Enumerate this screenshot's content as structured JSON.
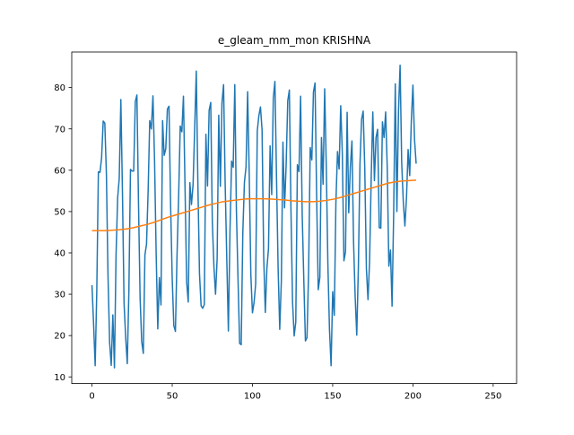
{
  "chart_data": {
    "type": "line",
    "title": "e_gleam_mm_mon KRISHNA",
    "xlabel": "",
    "ylabel": "",
    "xlim": [
      -12.6,
      264.6
    ],
    "ylim": [
      8.4,
      88.6
    ],
    "grid": false,
    "xticks": [
      0,
      50,
      100,
      150,
      200,
      250
    ],
    "yticks": [
      10,
      20,
      30,
      40,
      50,
      60,
      70,
      80
    ],
    "colors": {
      "raw": "#1f77b4",
      "trend": "#ff7f0e"
    },
    "series": [
      {
        "x_start": 0,
        "values": [
          32.2,
          22.9,
          12.7,
          30.8,
          59.6,
          59.5,
          63.0,
          71.9,
          71.4,
          58.9,
          34.3,
          18.3,
          12.8,
          25.0,
          12.2,
          39.5,
          53.3,
          58.1,
          77.1,
          54.6,
          27.8,
          19.6,
          13.2,
          30.7,
          60.2,
          59.8,
          59.8,
          76.6,
          78.2,
          51.9,
          29.0,
          18.5,
          15.7,
          39.5,
          42.1,
          55.0,
          72.0,
          70.0,
          78.0,
          62.4,
          39.8,
          21.6,
          34.0,
          27.4,
          72.0,
          63.6,
          65.2,
          74.8,
          75.5,
          51.7,
          33.8,
          22.4,
          21.0,
          39.4,
          53.6,
          70.7,
          69.3,
          77.9,
          55.6,
          32.9,
          28.1,
          57.0,
          51.7,
          56.5,
          70.0,
          84.0,
          56.6,
          35.0,
          27.2,
          26.6,
          27.5,
          68.7,
          56.2,
          74.5,
          76.4,
          47.5,
          36.7,
          30.0,
          38.6,
          73.3,
          56.1,
          76.3,
          80.7,
          56.7,
          38.6,
          21.1,
          45.3,
          62.2,
          60.7,
          80.7,
          50.3,
          33.8,
          18.1,
          17.8,
          44.9,
          57.1,
          60.8,
          79.0,
          59.0,
          34.7,
          25.5,
          28.0,
          32.5,
          69.5,
          73.2,
          75.3,
          69.7,
          39.3,
          25.6,
          36.3,
          41.0,
          65.9,
          54.1,
          77.5,
          81.5,
          58.2,
          36.2,
          21.5,
          33.2,
          66.8,
          50.9,
          61.3,
          76.8,
          79.4,
          50.4,
          28.0,
          19.9,
          23.3,
          61.3,
          59.7,
          77.9,
          49.3,
          33.5,
          18.7,
          19.5,
          35.7,
          65.5,
          62.5,
          78.9,
          81.1,
          53.6,
          31.1,
          34.1,
          67.9,
          56.6,
          79.7,
          61.1,
          37.3,
          21.5,
          12.7,
          30.6,
          24.9,
          52.1,
          64.5,
          60.3,
          75.6,
          64.1,
          38.1,
          40.3,
          74.0,
          49.7,
          60.8,
          67.1,
          42.8,
          29.5,
          20.1,
          36.4,
          61.5,
          72.3,
          74.3,
          60.3,
          36.2,
          28.7,
          38.1,
          58.1,
          74.1,
          57.5,
          67.9,
          69.9,
          46.1,
          46.0,
          71.7,
          67.9,
          74.1,
          60.5,
          36.8,
          40.7,
          27.1,
          49.7,
          80.9,
          50.0,
          74.2,
          85.4,
          61.8,
          52.4,
          46.5,
          53.4,
          65.0,
          58.7,
          71.9,
          80.6,
          67.4,
          61.6
        ]
      },
      {
        "x_start": 0,
        "values": [
          45.4,
          45.4,
          45.4,
          45.5,
          45.6,
          45.8,
          46.1,
          46.5,
          46.9,
          47.4,
          48.0,
          48.6,
          49.1,
          49.6,
          50.1,
          50.6,
          51.1,
          51.6,
          52.0,
          52.4,
          52.6,
          52.8,
          53.0,
          53.1,
          53.1,
          53.1,
          53.0,
          52.9,
          52.8,
          52.6,
          52.5,
          52.4,
          52.4,
          52.5,
          52.7,
          53.0,
          53.4,
          53.9,
          54.4,
          54.9,
          55.4,
          55.9,
          56.4,
          56.9,
          57.2,
          57.4,
          57.5,
          57.6
        ]
      }
    ]
  }
}
